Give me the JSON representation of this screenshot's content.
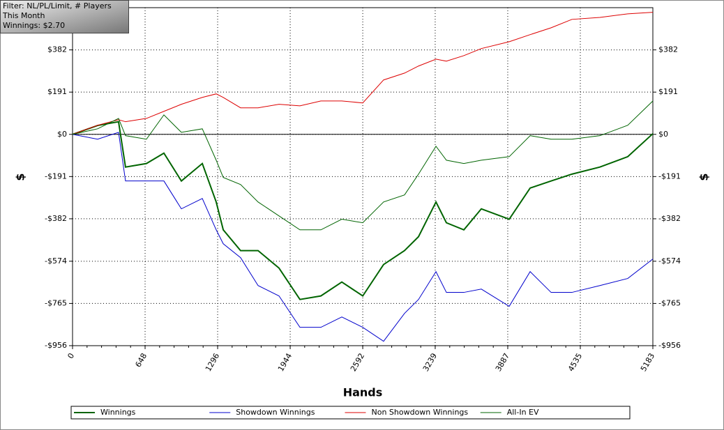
{
  "chart_data": {
    "type": "line",
    "annotations": [
      "Filter: NL/PL/Limit, # Players",
      "This Month",
      "Winnings: $2.70"
    ],
    "x_label": "Hands",
    "y_label": "$",
    "x": [
      0,
      224,
      411,
      473,
      660,
      816,
      972,
      1159,
      1283,
      1346,
      1501,
      1657,
      1844,
      2031,
      2218,
      2405,
      2592,
      2778,
      2965,
      3090,
      3246,
      3339,
      3495,
      3651,
      3900,
      4087,
      4274,
      4460,
      4710,
      4959,
      5183
    ],
    "series": [
      {
        "name": "Winnings",
        "color": "#006400",
        "line_width": 2,
        "values": [
          0,
          40,
          57,
          -148,
          -132,
          -85,
          -211,
          -132,
          -306,
          -432,
          -526,
          -526,
          -605,
          -747,
          -731,
          -668,
          -731,
          -589,
          -526,
          -463,
          -306,
          -400,
          -432,
          -337,
          -384,
          -243,
          -211,
          -180,
          -148,
          -101,
          3
        ]
      },
      {
        "name": "Showdown Winnings",
        "color": "#0000cc",
        "line_width": 1,
        "values": [
          0,
          -22,
          9,
          -211,
          -211,
          -211,
          -337,
          -290,
          -432,
          -495,
          -558,
          -684,
          -731,
          -873,
          -873,
          -826,
          -873,
          -936,
          -810,
          -747,
          -621,
          -715,
          -715,
          -700,
          -778,
          -621,
          -715,
          -715,
          -684,
          -652,
          -564
        ]
      },
      {
        "name": "Non Showdown Winnings",
        "color": "#dd0000",
        "line_width": 1,
        "values": [
          0,
          41,
          66,
          57,
          72,
          104,
          136,
          167,
          183,
          167,
          120,
          120,
          136,
          129,
          151,
          151,
          142,
          246,
          277,
          309,
          340,
          331,
          356,
          388,
          419,
          451,
          482,
          520,
          529,
          545,
          552
        ]
      },
      {
        "name": "All-In EV",
        "color": "#006400",
        "line_width": 1,
        "values": [
          0,
          25,
          72,
          -6,
          -22,
          88,
          9,
          25,
          -117,
          -195,
          -227,
          -306,
          -369,
          -432,
          -432,
          -384,
          -400,
          -306,
          -274,
          -180,
          -54,
          -117,
          -132,
          -117,
          -101,
          -6,
          -22,
          -22,
          -6,
          41,
          151
        ]
      }
    ],
    "xlim": [
      0,
      5183
    ],
    "xticks": [
      0,
      648,
      1296,
      1944,
      2592,
      3239,
      3887,
      4535,
      5183
    ],
    "ylim": [
      -956,
      573
    ],
    "yticks": [
      {
        "value": 382,
        "label": "$382"
      },
      {
        "value": 191,
        "label": "$191"
      },
      {
        "value": 0,
        "label": "$0"
      },
      {
        "value": -191,
        "label": "-$191"
      },
      {
        "value": -382,
        "label": "-$382"
      },
      {
        "value": -574,
        "label": "-$574"
      },
      {
        "value": -765,
        "label": "-$765"
      },
      {
        "value": -956,
        "label": "-$956"
      }
    ],
    "grid": true,
    "zero_line": true,
    "legend": "bottom"
  }
}
